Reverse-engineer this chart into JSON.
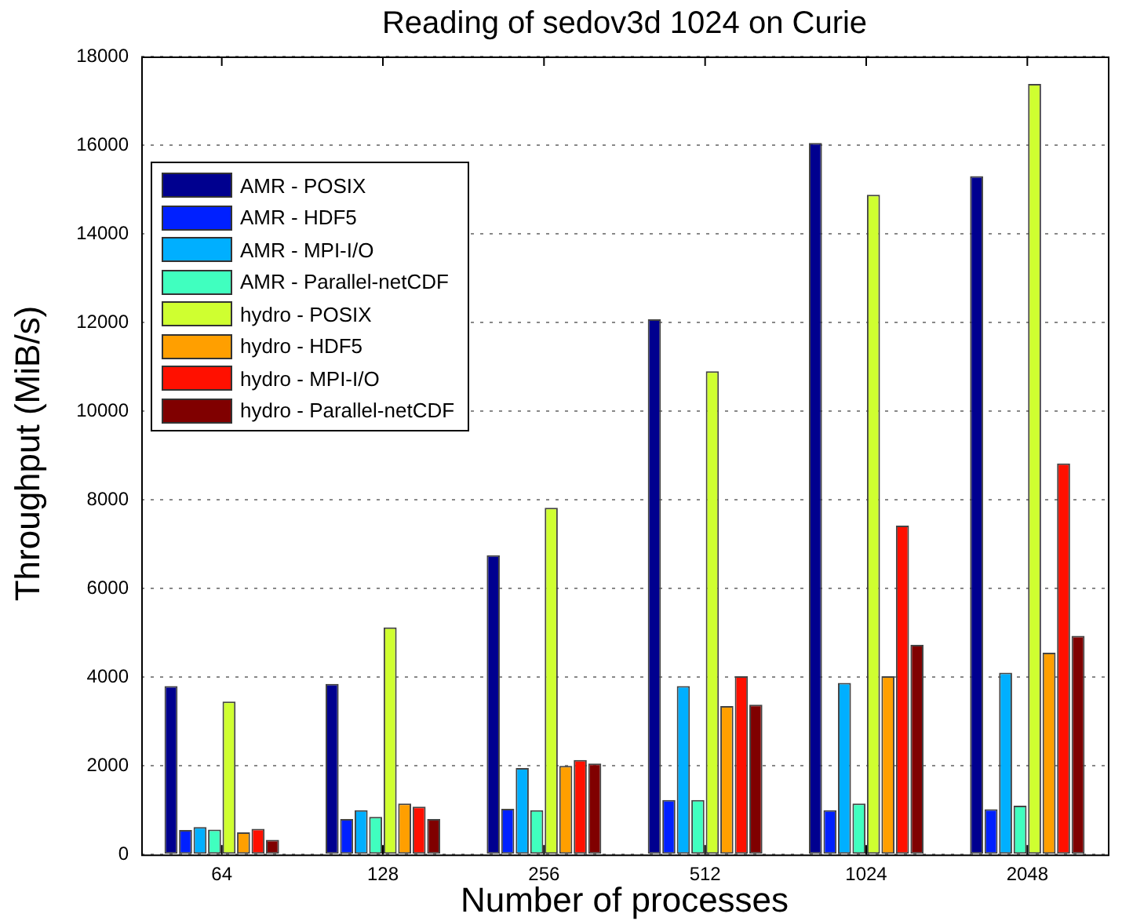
{
  "chart_data": {
    "type": "bar",
    "title": "Reading of sedov3d 1024 on Curie",
    "xlabel": "Number of processes",
    "ylabel": "Throughput (MiB/s)",
    "categories": [
      "64",
      "128",
      "256",
      "512",
      "1024",
      "2048"
    ],
    "series": [
      {
        "name": "AMR - POSIX",
        "color": "#00008f",
        "values": [
          3800,
          3850,
          6750,
          12070,
          16050,
          15300
        ]
      },
      {
        "name": "AMR - HDF5",
        "color": "#0020ff",
        "values": [
          550,
          800,
          1030,
          1230,
          1000,
          1020
        ]
      },
      {
        "name": "AMR - MPI-I/O",
        "color": "#00afff",
        "values": [
          620,
          1000,
          1950,
          3800,
          3870,
          4100
        ]
      },
      {
        "name": "AMR - Parallel-netCDF",
        "color": "#40ffbf",
        "values": [
          560,
          850,
          1000,
          1230,
          1150,
          1100
        ]
      },
      {
        "name": "hydro - POSIX",
        "color": "#cfff30",
        "values": [
          3450,
          5120,
          7820,
          10900,
          14880,
          17380
        ]
      },
      {
        "name": "hydro - HDF5",
        "color": "#ff9f00",
        "values": [
          500,
          1150,
          2000,
          3350,
          4020,
          4550
        ]
      },
      {
        "name": "hydro - MPI-I/O",
        "color": "#ff1000",
        "values": [
          580,
          1080,
          2130,
          4020,
          7420,
          8820
        ]
      },
      {
        "name": "hydro - Parallel-netCDF",
        "color": "#800000",
        "values": [
          330,
          800,
          2050,
          3380,
          4730,
          4930
        ]
      }
    ],
    "ylim": [
      0,
      18000
    ],
    "yticks": [
      0,
      2000,
      4000,
      6000,
      8000,
      10000,
      12000,
      14000,
      16000,
      18000
    ],
    "grid": "y",
    "legend": "top left"
  }
}
